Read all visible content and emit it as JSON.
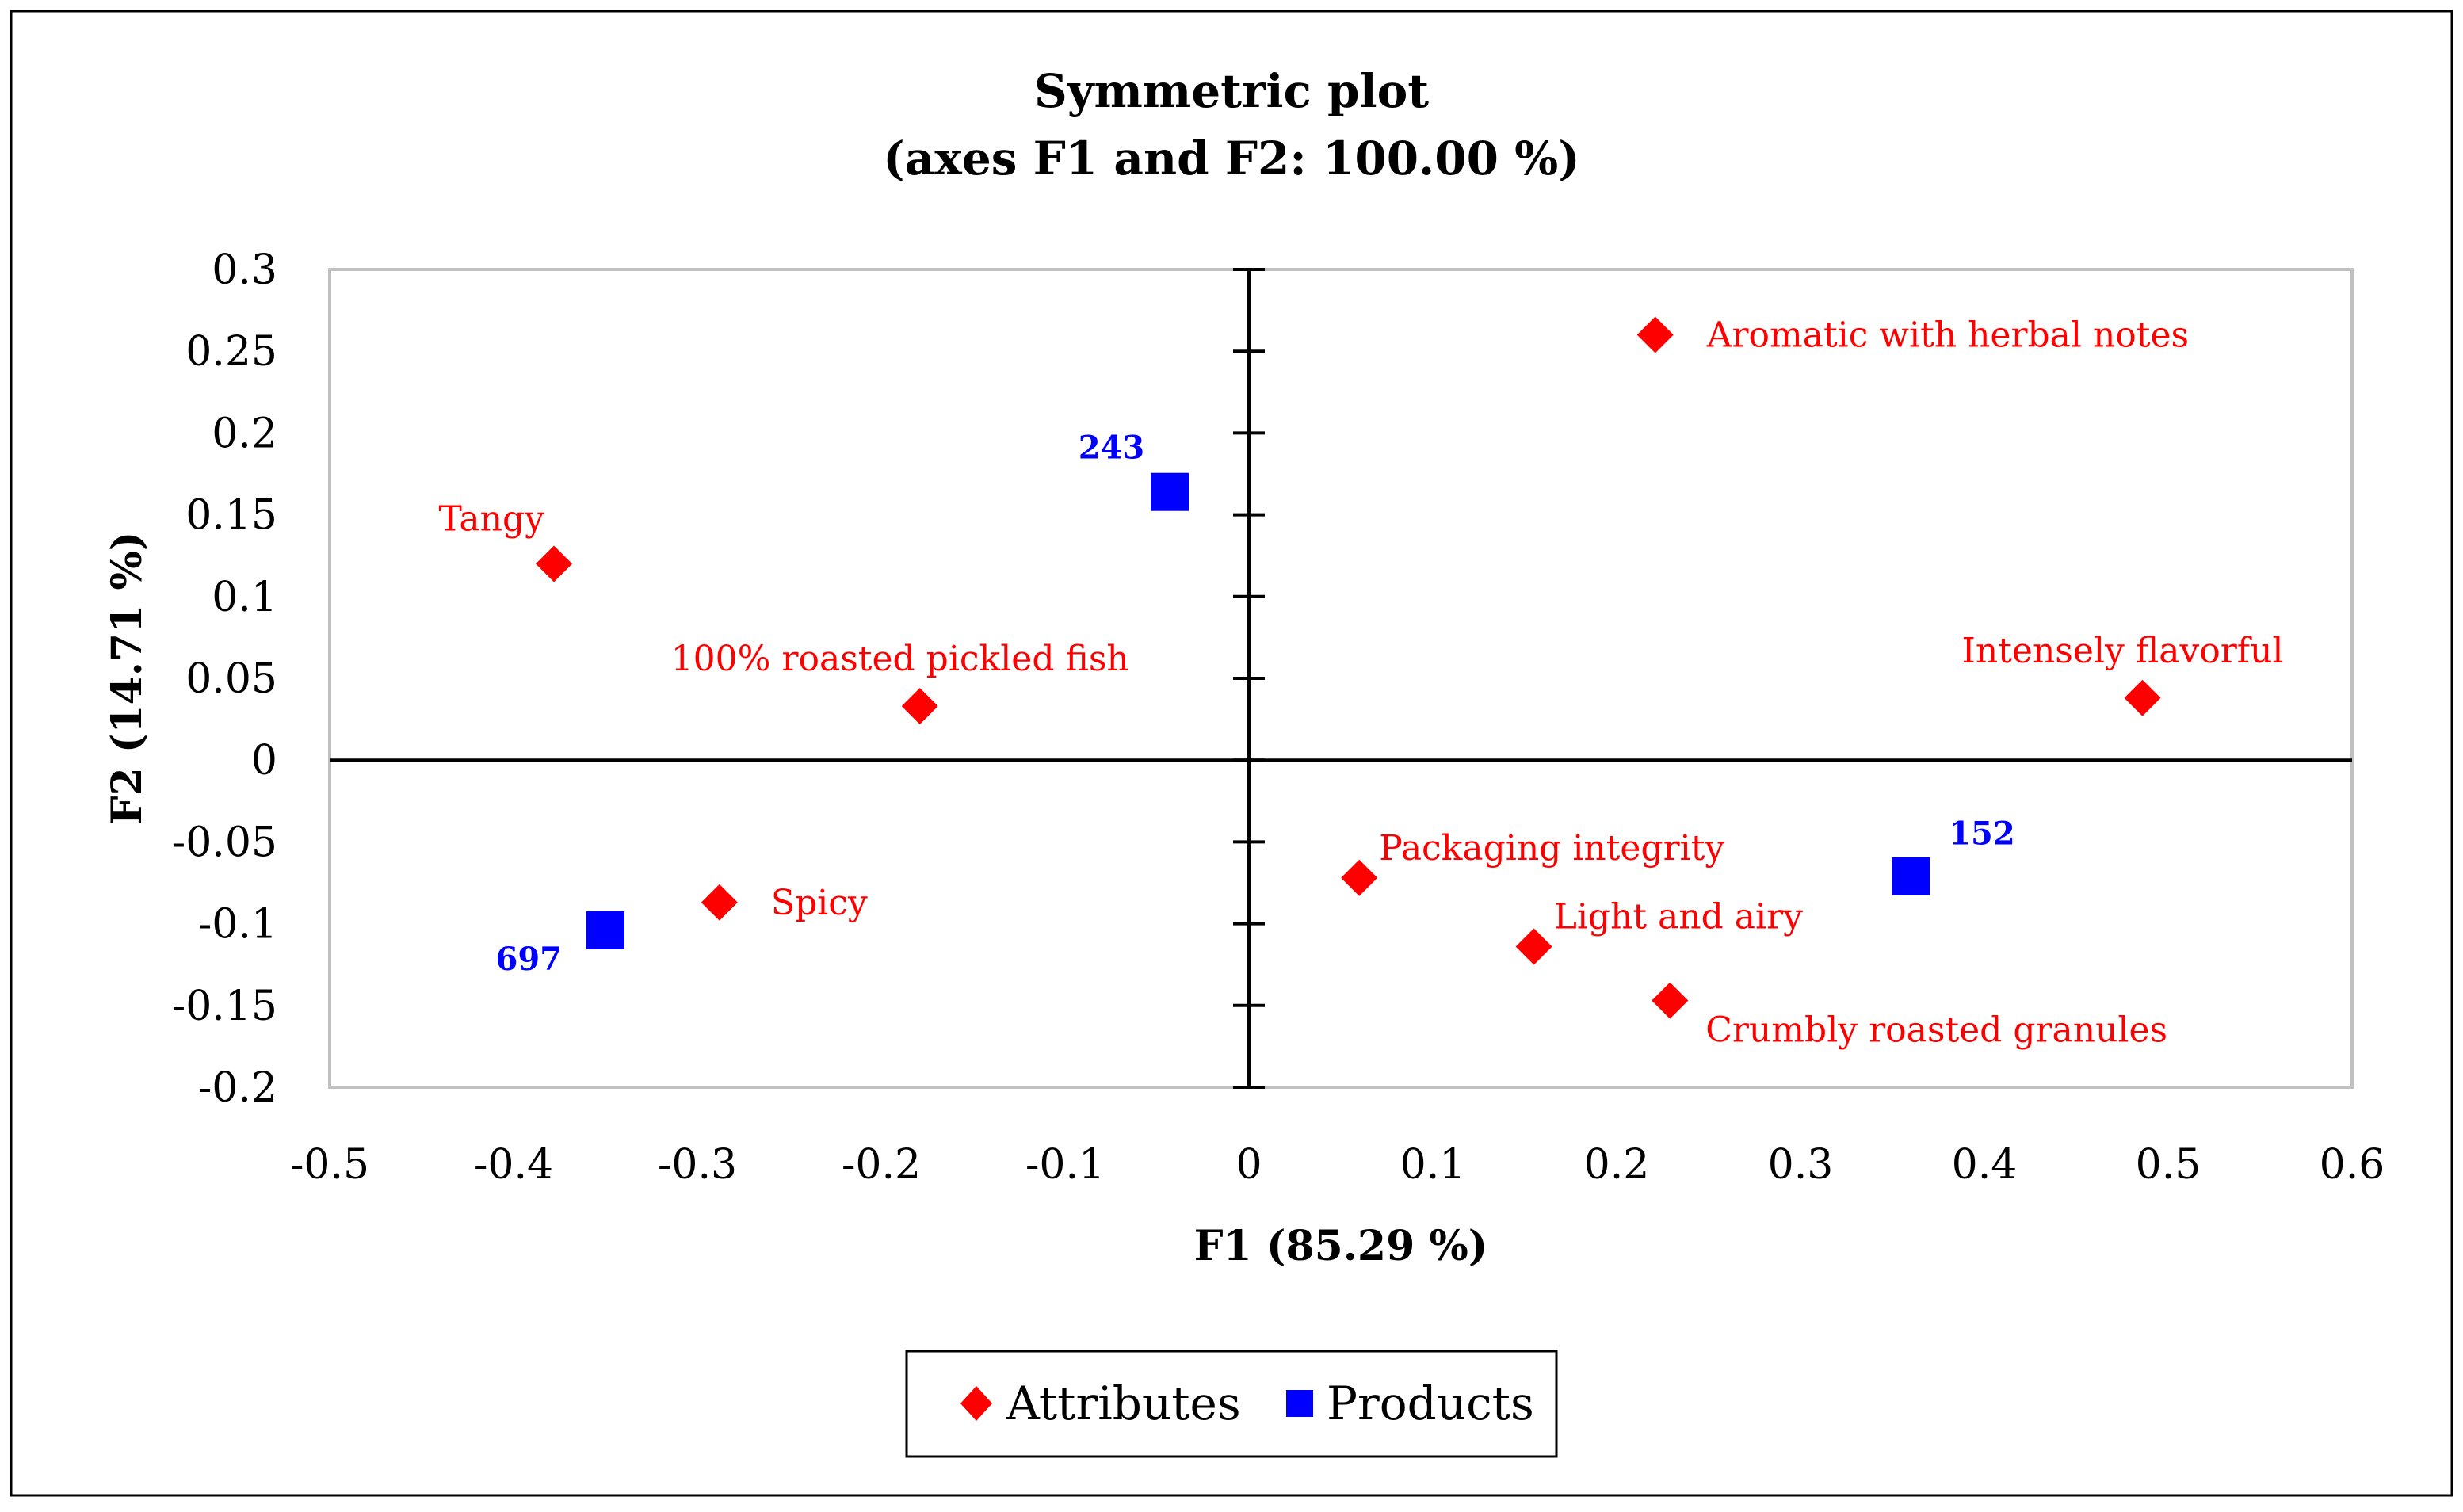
{
  "colors": {
    "attributes": "#ff0000",
    "products": "#0000ff",
    "axis": "#000000",
    "plot_border": "#c0c0c0",
    "background": "#ffffff"
  },
  "chart_data": {
    "type": "scatter",
    "title": "Symmetric plot",
    "subtitle": "(axes F1 and F2: 100.00 %)",
    "xlabel": "F1 (85.29 %)",
    "ylabel": "F2 (14.71 %)",
    "xlim": [
      -0.5,
      0.6
    ],
    "ylim": [
      -0.2,
      0.3
    ],
    "x_ticks": [
      -0.5,
      -0.4,
      -0.3,
      -0.2,
      -0.1,
      0,
      0.1,
      0.2,
      0.3,
      0.4,
      0.5,
      0.6
    ],
    "x_tick_labels": [
      "-0.5",
      "-0.4",
      "-0.3",
      "-0.2",
      "-0.1",
      "0",
      "0.1",
      "0.2",
      "0.3",
      "0.4",
      "0.5",
      "0.6"
    ],
    "y_ticks": [
      0.3,
      0.25,
      0.2,
      0.15,
      0.1,
      0.05,
      0,
      -0.05,
      -0.1,
      -0.15,
      -0.2
    ],
    "y_tick_labels": [
      "0.3",
      "0.25",
      "0.2",
      "0.15",
      "0.1",
      "0.05",
      "0",
      "-0.05",
      "-0.1",
      "-0.15",
      "-0.2"
    ],
    "grid": false,
    "legend_position": "bottom-center",
    "series": [
      {
        "name": "Attributes",
        "marker": "diamond",
        "color": "#ff0000",
        "points": [
          {
            "label": "Aromatic with herbal notes",
            "x": 0.221,
            "y": 0.26,
            "label_pos": "right"
          },
          {
            "label": "Tangy",
            "x": -0.378,
            "y": 0.12,
            "label_pos": "upper-left"
          },
          {
            "label": "100% roasted pickled fish",
            "x": -0.179,
            "y": 0.033,
            "label_pos": "above"
          },
          {
            "label": "Intensely flavorful",
            "x": 0.486,
            "y": 0.038,
            "label_pos": "above"
          },
          {
            "label": "Packaging integrity",
            "x": 0.06,
            "y": -0.072,
            "label_pos": "upper-right"
          },
          {
            "label": "Spicy",
            "x": -0.288,
            "y": -0.087,
            "label_pos": "right"
          },
          {
            "label": "Light and airy",
            "x": 0.155,
            "y": -0.114,
            "label_pos": "upper-right"
          },
          {
            "label": "Crumbly roasted granules",
            "x": 0.229,
            "y": -0.147,
            "label_pos": "lower-right"
          }
        ]
      },
      {
        "name": "Products",
        "marker": "square",
        "color": "#0000ff",
        "points": [
          {
            "label": "243",
            "x": -0.043,
            "y": 0.164,
            "label_pos": "upper-left"
          },
          {
            "label": "152",
            "x": 0.36,
            "y": -0.071,
            "label_pos": "upper-right"
          },
          {
            "label": "697",
            "x": -0.35,
            "y": -0.104,
            "label_pos": "lower-left"
          }
        ]
      }
    ]
  }
}
